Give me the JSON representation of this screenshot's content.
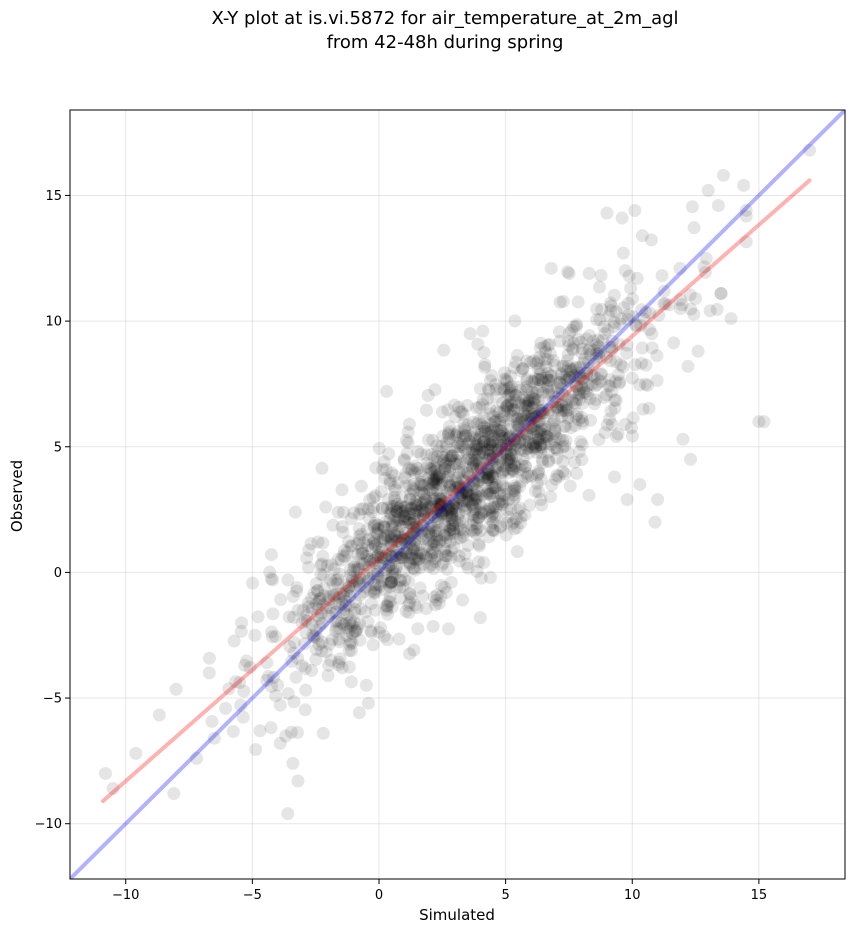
{
  "chart_data": {
    "type": "scatter",
    "title": "X-Y plot at is.vi.5872 for air_temperature_at_2m_agl",
    "subtitle": "from 42-48h during spring",
    "xlabel": "Simulated",
    "ylabel": "Observed",
    "xlim": [
      -12.2,
      18.4
    ],
    "ylim": [
      -12.2,
      18.4
    ],
    "xticks": [
      -10,
      -5,
      0,
      5,
      10,
      15
    ],
    "yticks": [
      -10,
      -5,
      0,
      5,
      10,
      15
    ],
    "xtick_labels": [
      "−10",
      "−5",
      "0",
      "5",
      "10",
      "15"
    ],
    "ytick_labels": [
      "−10",
      "−5",
      "0",
      "5",
      "10",
      "15"
    ],
    "grid": true,
    "points_color": "#000000",
    "points_alpha": 0.1,
    "points_approx_count": 1800,
    "sample_points": [
      [
        -3.6,
        -9.6
      ],
      [
        -10.8,
        -8.0
      ],
      [
        -10.5,
        -8.6
      ],
      [
        -9.6,
        -7.2
      ],
      [
        -8.1,
        -8.8
      ],
      [
        -7.2,
        -7.4
      ],
      [
        -6.5,
        -6.6
      ],
      [
        -6.7,
        -4.0
      ],
      [
        -5.3,
        -3.7
      ],
      [
        -4.9,
        -2.5
      ],
      [
        -4.7,
        -6.3
      ],
      [
        -2.2,
        -6.4
      ],
      [
        -3.9,
        -6.8
      ],
      [
        -3.4,
        -7.6
      ],
      [
        -3.2,
        -8.3
      ],
      [
        -1.9,
        -3.5
      ],
      [
        -2.2,
        -1.3
      ],
      [
        -1.9,
        -0.3
      ],
      [
        -4.2,
        -0.3
      ],
      [
        -3.3,
        2.4
      ],
      [
        -2.1,
        2.6
      ],
      [
        -1.0,
        0.4
      ],
      [
        0.2,
        4.4
      ],
      [
        0.3,
        7.2
      ],
      [
        1.0,
        4.5
      ],
      [
        1.2,
        5.9
      ],
      [
        0.3,
        -1.5
      ],
      [
        1.5,
        -1.4
      ],
      [
        2.3,
        -0.9
      ],
      [
        3.3,
        -1.1
      ],
      [
        4.0,
        -1.8
      ],
      [
        4.4,
        -0.2
      ],
      [
        2.7,
        2.5
      ],
      [
        3.1,
        3.4
      ],
      [
        4.4,
        6.3
      ],
      [
        4.1,
        9.6
      ],
      [
        3.6,
        9.5
      ],
      [
        4.8,
        7.3
      ],
      [
        5.3,
        6.2
      ],
      [
        5.6,
        4.9
      ],
      [
        6.8,
        12.1
      ],
      [
        7.3,
        8.2
      ],
      [
        8.1,
        7.6
      ],
      [
        8.7,
        8.6
      ],
      [
        9.1,
        6.1
      ],
      [
        9.3,
        3.8
      ],
      [
        9.8,
        2.9
      ],
      [
        10.3,
        3.5
      ],
      [
        10.9,
        2.0
      ],
      [
        11.0,
        2.9
      ],
      [
        12.0,
        5.3
      ],
      [
        12.3,
        4.5
      ],
      [
        12.2,
        8.2
      ],
      [
        12.6,
        8.8
      ],
      [
        11.9,
        10.5
      ],
      [
        12.5,
        10.9
      ],
      [
        13.0,
        15.2
      ],
      [
        13.4,
        14.6
      ],
      [
        13.6,
        15.8
      ],
      [
        14.4,
        15.4
      ],
      [
        13.9,
        10.1
      ],
      [
        13.5,
        11.1
      ],
      [
        15.0,
        6.0
      ],
      [
        15.2,
        6.0
      ],
      [
        17.0,
        16.8
      ],
      [
        9.0,
        14.3
      ],
      [
        9.6,
        14.1
      ],
      [
        10.1,
        14.4
      ],
      [
        10.4,
        13.4
      ],
      [
        8.3,
        11.9
      ]
    ],
    "lines": [
      {
        "color": "#0000ff",
        "alpha": 0.3,
        "x": [
          -12.2,
          18.4
        ],
        "y": [
          -12.2,
          18.4
        ]
      },
      {
        "color": "#ff0000",
        "alpha": 0.3,
        "x": [
          -10.9,
          17.0
        ],
        "y": [
          -9.1,
          15.6
        ]
      }
    ]
  }
}
